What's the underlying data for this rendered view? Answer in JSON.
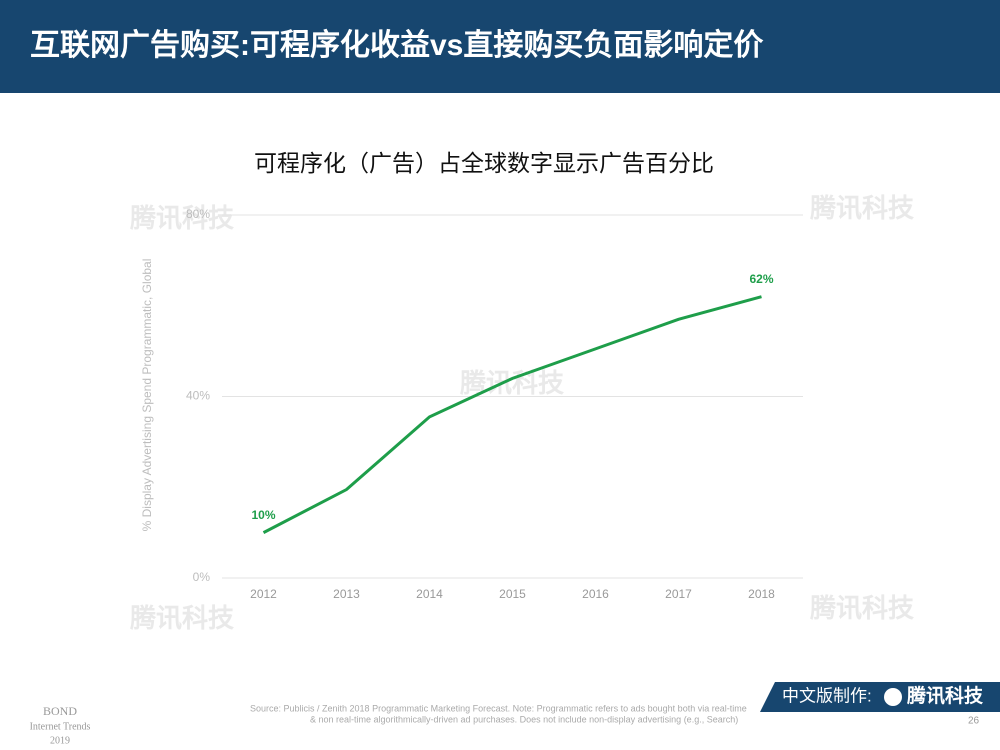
{
  "header": {
    "title": "互联网广告购买:可程序化收益vs直接购买负面影响定价"
  },
  "chart_data": {
    "type": "line",
    "title": "可程序化（广告）占全球数字显示广告百分比",
    "y_label": "% Display Advertising Spend Programmatic, Global",
    "categories": [
      "2012",
      "2013",
      "2014",
      "2015",
      "2016",
      "2017",
      "2018"
    ],
    "values": [
      10,
      19.5,
      35.5,
      44,
      50.5,
      57,
      62
    ],
    "value_labels": [
      "10%",
      null,
      null,
      null,
      null,
      null,
      "62%"
    ],
    "color": "#1e9e4a",
    "ylim": [
      0,
      80
    ],
    "yticks": [
      {
        "value": 0,
        "label": "0%"
      },
      {
        "value": 40,
        "label": "40%"
      },
      {
        "value": 80,
        "label": "80%"
      }
    ],
    "grid": true
  },
  "footer": {
    "source": [
      "Source: Publicis / Zenith 2018 Programmatic Marketing Forecast.  Note: Programmatic refers to ads bought both via real-time",
      "& non real-time algorithmically-driven ad purchases.  Does not include non-display advertising (e.g., Search)"
    ],
    "brand": [
      "BOND",
      "Internet Trends",
      "2019"
    ],
    "page": "26",
    "badge_label": "中文版制作:",
    "badge_name": "腾讯科技",
    "watermark": "腾讯科技"
  }
}
